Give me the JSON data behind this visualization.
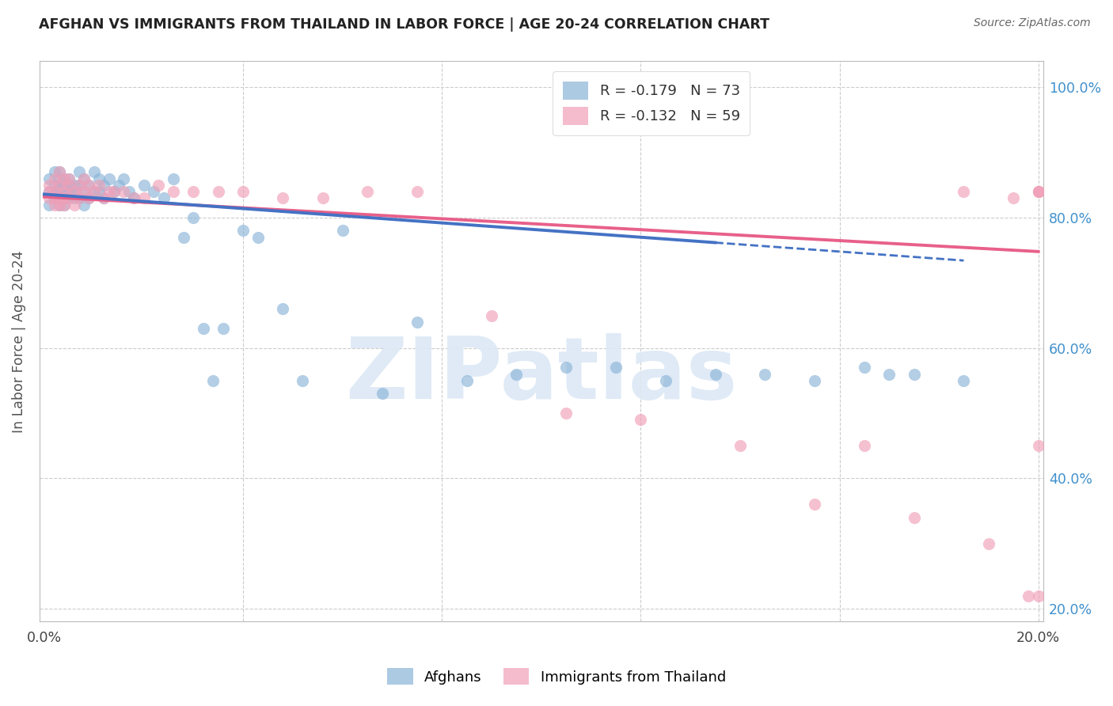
{
  "title": "AFGHAN VS IMMIGRANTS FROM THAILAND IN LABOR FORCE | AGE 20-24 CORRELATION CHART",
  "source": "Source: ZipAtlas.com",
  "ylabel": "In Labor Force | Age 20-24",
  "xlim": [
    -0.001,
    0.201
  ],
  "ylim": [
    0.18,
    1.04
  ],
  "xtick_vals": [
    0.0,
    0.04,
    0.08,
    0.12,
    0.16,
    0.2
  ],
  "xticklabels": [
    "0.0%",
    "",
    "",
    "",
    "",
    "20.0%"
  ],
  "ytick_positions": [
    0.2,
    0.4,
    0.6,
    0.8,
    1.0
  ],
  "yticklabels_right": [
    "20.0%",
    "40.0%",
    "60.0%",
    "80.0%",
    "100.0%"
  ],
  "R_afghan": -0.179,
  "N_afghan": 73,
  "R_thailand": -0.132,
  "N_thailand": 59,
  "color_afghan": "#8ab4d8",
  "color_thailand": "#f0a0b8",
  "color_line_afghan": "#4472c4",
  "color_line_thailand": "#e8608a",
  "watermark_text": "ZIPatlas",
  "watermark_color": "#dce8f5",
  "background_color": "#ffffff",
  "grid_color": "#cccccc",
  "title_color": "#222222",
  "right_tick_color": "#4090cc",
  "source_color": "#666666",
  "trend_af_intercept": 0.836,
  "trend_af_slope": -0.55,
  "trend_th_intercept": 0.832,
  "trend_th_slope": -0.42,
  "trend_af_solid_end": 0.135,
  "trend_af_x_end": 0.185,
  "trend_th_x_end": 0.2,
  "afghan_x": [
    0.001,
    0.001,
    0.001,
    0.002,
    0.002,
    0.002,
    0.002,
    0.003,
    0.003,
    0.003,
    0.003,
    0.003,
    0.003,
    0.004,
    0.004,
    0.004,
    0.004,
    0.004,
    0.005,
    0.005,
    0.005,
    0.005,
    0.006,
    0.006,
    0.006,
    0.007,
    0.007,
    0.007,
    0.008,
    0.008,
    0.008,
    0.009,
    0.009,
    0.01,
    0.01,
    0.011,
    0.011,
    0.012,
    0.012,
    0.013,
    0.014,
    0.015,
    0.016,
    0.017,
    0.018,
    0.02,
    0.022,
    0.024,
    0.026,
    0.028,
    0.03,
    0.032,
    0.034,
    0.036,
    0.04,
    0.043,
    0.048,
    0.052,
    0.06,
    0.068,
    0.075,
    0.085,
    0.095,
    0.105,
    0.115,
    0.125,
    0.135,
    0.145,
    0.155,
    0.165,
    0.17,
    0.175,
    0.185
  ],
  "afghan_y": [
    0.84,
    0.82,
    0.86,
    0.84,
    0.83,
    0.87,
    0.85,
    0.84,
    0.83,
    0.86,
    0.82,
    0.85,
    0.87,
    0.84,
    0.83,
    0.85,
    0.82,
    0.86,
    0.85,
    0.84,
    0.83,
    0.86,
    0.85,
    0.84,
    0.83,
    0.87,
    0.85,
    0.83,
    0.86,
    0.84,
    0.82,
    0.85,
    0.83,
    0.87,
    0.84,
    0.86,
    0.84,
    0.85,
    0.83,
    0.86,
    0.84,
    0.85,
    0.86,
    0.84,
    0.83,
    0.85,
    0.84,
    0.83,
    0.86,
    0.77,
    0.8,
    0.63,
    0.55,
    0.63,
    0.78,
    0.77,
    0.66,
    0.55,
    0.78,
    0.53,
    0.64,
    0.55,
    0.56,
    0.57,
    0.57,
    0.55,
    0.56,
    0.56,
    0.55,
    0.57,
    0.56,
    0.56,
    0.55
  ],
  "thai_x": [
    0.001,
    0.001,
    0.001,
    0.002,
    0.002,
    0.002,
    0.002,
    0.003,
    0.003,
    0.003,
    0.003,
    0.004,
    0.004,
    0.004,
    0.004,
    0.005,
    0.005,
    0.005,
    0.006,
    0.006,
    0.007,
    0.007,
    0.008,
    0.008,
    0.009,
    0.009,
    0.01,
    0.011,
    0.012,
    0.013,
    0.014,
    0.016,
    0.018,
    0.02,
    0.023,
    0.026,
    0.03,
    0.035,
    0.04,
    0.048,
    0.056,
    0.065,
    0.075,
    0.09,
    0.105,
    0.12,
    0.14,
    0.155,
    0.165,
    0.175,
    0.185,
    0.19,
    0.195,
    0.198,
    0.2,
    0.2,
    0.2,
    0.2,
    0.2
  ],
  "thai_y": [
    0.84,
    0.83,
    0.85,
    0.84,
    0.83,
    0.86,
    0.82,
    0.85,
    0.83,
    0.87,
    0.82,
    0.84,
    0.83,
    0.86,
    0.82,
    0.85,
    0.83,
    0.86,
    0.84,
    0.82,
    0.85,
    0.83,
    0.86,
    0.84,
    0.85,
    0.83,
    0.84,
    0.85,
    0.83,
    0.84,
    0.84,
    0.84,
    0.83,
    0.83,
    0.85,
    0.84,
    0.84,
    0.84,
    0.84,
    0.83,
    0.83,
    0.84,
    0.84,
    0.65,
    0.5,
    0.49,
    0.45,
    0.36,
    0.45,
    0.34,
    0.84,
    0.3,
    0.83,
    0.22,
    0.45,
    0.84,
    0.22,
    0.84,
    0.84
  ]
}
